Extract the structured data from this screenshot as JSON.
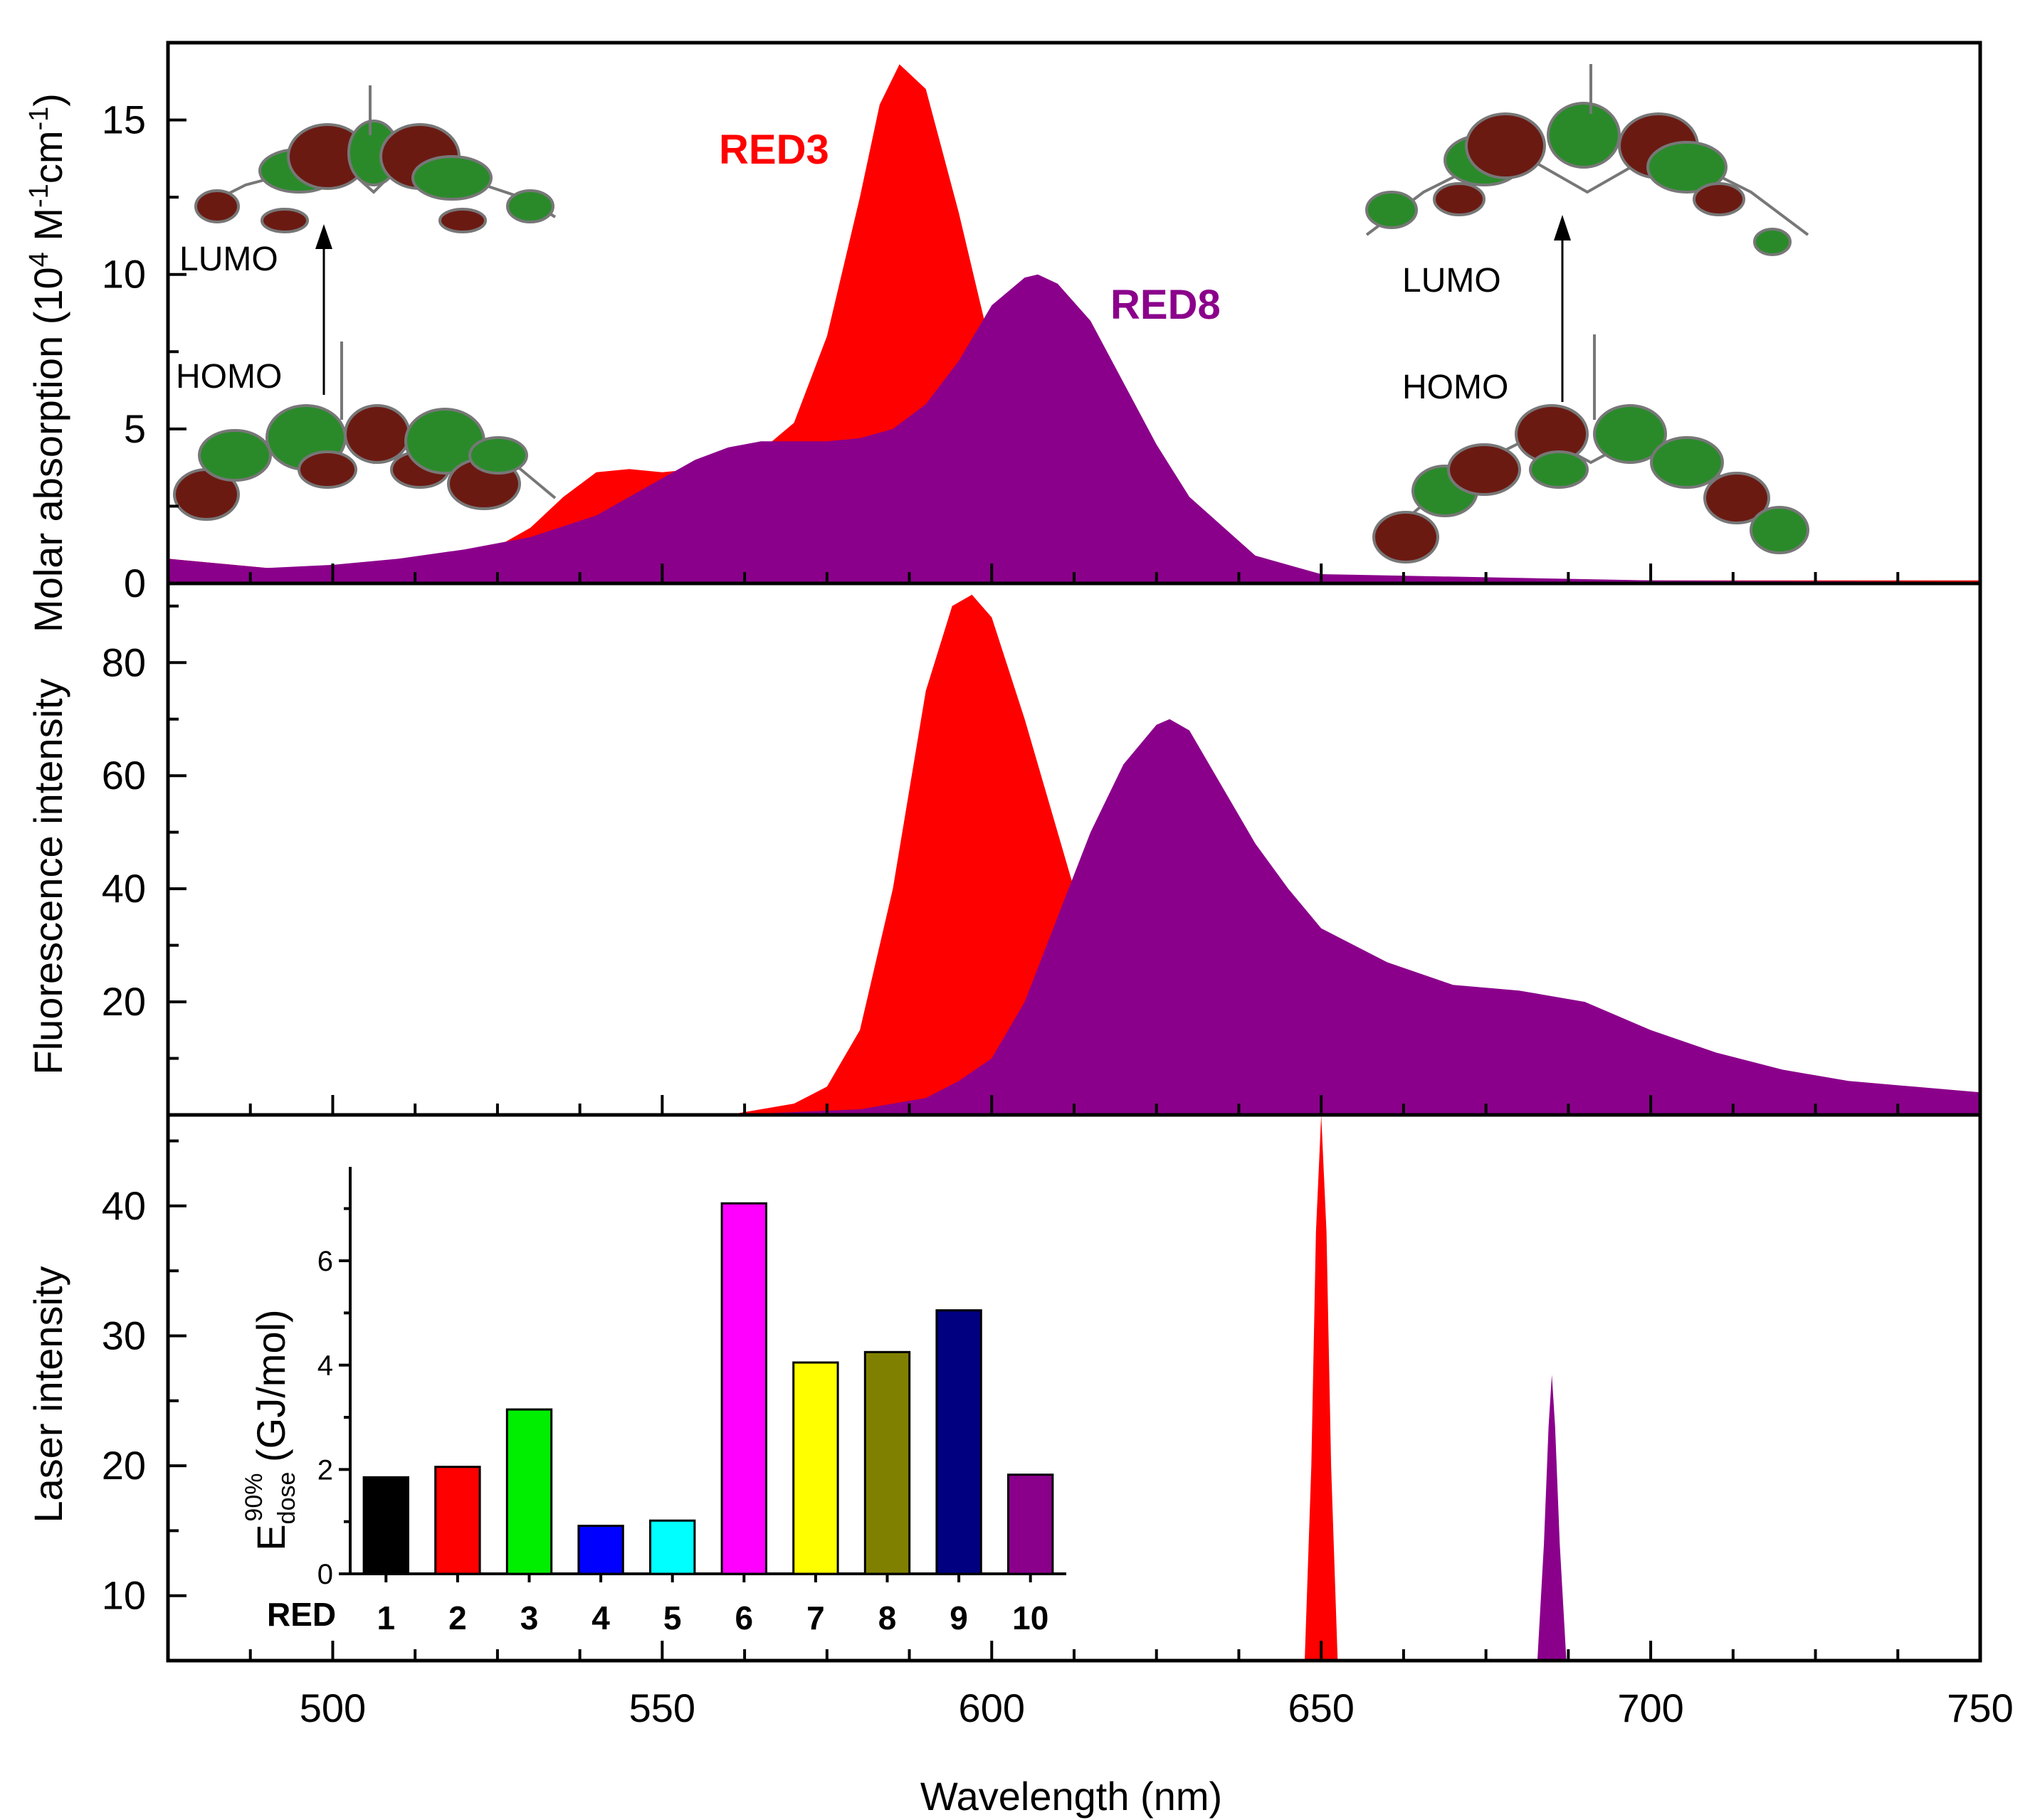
{
  "chart_data": [
    {
      "panel": "absorption",
      "type": "area",
      "ylabel": "Molar absorption (10^4 M^-1cm^-1)",
      "ylabel_parts": {
        "a": "Molar absorption (10",
        "b": "4",
        "c": " M",
        "d": "-1",
        "e": "cm",
        "f": "-1",
        "g": ")"
      },
      "xlim": [
        475,
        750
      ],
      "ylim": [
        0,
        17.5
      ],
      "yticks": [
        0,
        5,
        10,
        15
      ],
      "series": [
        {
          "name": "RED3",
          "color": "#ff0000",
          "x": [
            475,
            490,
            500,
            510,
            520,
            525,
            530,
            535,
            540,
            545,
            550,
            555,
            560,
            565,
            570,
            575,
            580,
            583,
            586,
            590,
            595,
            600,
            605,
            610,
            620,
            630,
            650,
            700,
            750
          ],
          "y": [
            0.8,
            0.5,
            0.5,
            0.7,
            1.0,
            1.2,
            1.8,
            2.8,
            3.6,
            3.7,
            3.6,
            3.7,
            3.9,
            4.3,
            5.2,
            8.0,
            12.5,
            15.5,
            16.8,
            16.0,
            12.0,
            7.5,
            4.5,
            2.5,
            1.0,
            0.5,
            0.2,
            0.1,
            0.1
          ]
        },
        {
          "name": "RED8",
          "color": "#8b008b",
          "x": [
            475,
            490,
            500,
            510,
            520,
            530,
            540,
            550,
            555,
            560,
            565,
            570,
            575,
            580,
            585,
            590,
            595,
            600,
            605,
            607,
            610,
            615,
            620,
            625,
            630,
            640,
            650,
            700,
            750
          ],
          "y": [
            0.8,
            0.5,
            0.6,
            0.8,
            1.1,
            1.5,
            2.2,
            3.4,
            4.0,
            4.4,
            4.6,
            4.6,
            4.6,
            4.7,
            5.0,
            5.8,
            7.2,
            9.0,
            9.9,
            10.0,
            9.7,
            8.5,
            6.5,
            4.5,
            2.8,
            0.9,
            0.3,
            0.1,
            0.05
          ]
        }
      ],
      "annotations": [
        {
          "text": "RED3",
          "color": "#ff0000"
        },
        {
          "text": "RED8",
          "color": "#8b008b"
        },
        {
          "text": "LUMO"
        },
        {
          "text": "HOMO"
        },
        {
          "text": "LUMO"
        },
        {
          "text": "HOMO"
        }
      ]
    },
    {
      "panel": "fluorescence",
      "type": "area",
      "ylabel": "Fluorescence intensity",
      "xlim": [
        475,
        750
      ],
      "ylim": [
        0,
        94
      ],
      "yticks": [
        20,
        40,
        60,
        80
      ],
      "series": [
        {
          "name": "RED3",
          "color": "#ff0000",
          "x": [
            560,
            570,
            575,
            580,
            585,
            590,
            594,
            597,
            600,
            605,
            610,
            615,
            620,
            625,
            630,
            640,
            650
          ],
          "y": [
            0,
            2,
            5,
            15,
            40,
            75,
            90,
            92,
            88,
            70,
            50,
            30,
            15,
            6,
            2,
            0.5,
            0
          ]
        },
        {
          "name": "RED8",
          "color": "#8b008b",
          "x": [
            560,
            580,
            590,
            595,
            600,
            605,
            610,
            615,
            620,
            625,
            627,
            630,
            635,
            640,
            645,
            650,
            660,
            670,
            680,
            690,
            700,
            710,
            720,
            730,
            740,
            750
          ],
          "y": [
            0,
            1,
            3,
            6,
            10,
            20,
            35,
            50,
            62,
            69,
            70,
            68,
            58,
            48,
            40,
            33,
            27,
            23,
            22,
            20,
            15,
            11,
            8,
            6,
            5,
            4
          ]
        }
      ]
    },
    {
      "panel": "laser",
      "type": "area",
      "ylabel": "Laser intensity",
      "xlabel": "Wavelength (nm)",
      "xlim": [
        475,
        750
      ],
      "xticks": [
        500,
        550,
        600,
        650,
        700,
        750
      ],
      "ylim": [
        5,
        47
      ],
      "yticks": [
        10,
        20,
        30,
        40
      ],
      "series": [
        {
          "name": "RED3",
          "color": "#ff0000",
          "x": [
            647.5,
            648.5,
            649.2,
            650,
            650.8,
            651.5,
            652.5
          ],
          "y": [
            5,
            20,
            38,
            47,
            38,
            20,
            5
          ]
        },
        {
          "name": "RED8",
          "color": "#8b008b",
          "x": [
            682.8,
            683.8,
            684.5,
            685,
            685.5,
            686.2,
            687.2
          ],
          "y": [
            5,
            14,
            23,
            27,
            23,
            14,
            5
          ]
        }
      ]
    },
    {
      "panel": "inset",
      "type": "bar",
      "ylabel": "E_dose^90% (GJ/mol)",
      "ylabel_parts": {
        "a": "E",
        "b": "dose",
        "c": "90%",
        "d": " (GJ/mol)"
      },
      "category_axis_label": "RED",
      "categories": [
        "1",
        "2",
        "3",
        "4",
        "5",
        "6",
        "7",
        "8",
        "9",
        "10"
      ],
      "values": [
        1.85,
        2.05,
        3.15,
        0.92,
        1.02,
        7.1,
        4.05,
        4.25,
        5.05,
        1.9
      ],
      "colors": [
        "#000000",
        "#ff0000",
        "#00ee00",
        "#0000ff",
        "#00ffff",
        "#ff00ff",
        "#ffff00",
        "#808000",
        "#000080",
        "#8b008b"
      ],
      "ylim": [
        0,
        7.8
      ],
      "yticks": [
        0,
        2,
        4,
        6
      ]
    }
  ]
}
